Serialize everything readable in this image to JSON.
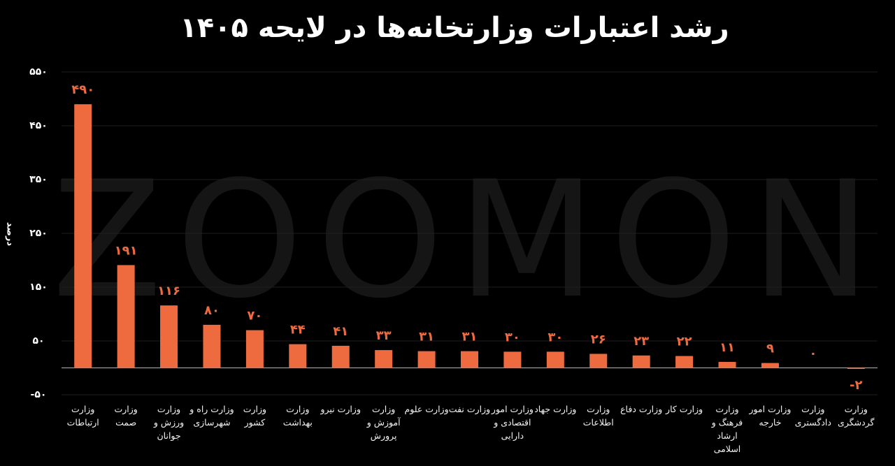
{
  "chart_data": {
    "type": "bar",
    "title": "رشد اعتبارات وزارتخانه‌ها در لایحه ۱۴۰۵",
    "y_label": "درصد",
    "watermark": "ZOOMON",
    "categories": [
      "وزارت ارتباطات",
      "وزارت صمت",
      "وزارت ورزش و جوانان",
      "وزارت راه و شهرسازی",
      "وزارت کشور",
      "وزارت بهداشت",
      "وزارت نیرو",
      "وزارت آموزش و پرورش",
      "وزارت علوم",
      "وزارت نفت",
      "وزارت امور اقتصادی و دارایی",
      "وزارت جهاد",
      "وزارت اطلاعات",
      "وزارت دفاع",
      "وزارت کار",
      "وزارت فرهنگ و ارشاد اسلامی",
      "وزارت امور خارجه",
      "وزارت دادگستری",
      "وزارت گردشگری"
    ],
    "values": [
      490,
      191,
      116,
      80,
      70,
      44,
      41,
      33,
      31,
      31,
      30,
      30,
      26,
      23,
      22,
      11,
      9,
      0,
      -2
    ],
    "value_labels": [
      "۴۹۰",
      "۱۹۱",
      "۱۱۶",
      "۸۰",
      "۷۰",
      "۴۴",
      "۴۱",
      "۳۳",
      "۳۱",
      "۳۱",
      "۳۰",
      "۳۰",
      "۲۶",
      "۲۳",
      "۲۲",
      "۱۱",
      "۹",
      "۰",
      "-۲"
    ],
    "color": "#ee6a3f",
    "ylim": [
      -50,
      550
    ],
    "yticks": [
      {
        "value": -50,
        "label": "-۵۰"
      },
      {
        "value": 50,
        "label": "۵۰"
      },
      {
        "value": 150,
        "label": "۱۵۰"
      },
      {
        "value": 250,
        "label": "۲۵۰"
      },
      {
        "value": 350,
        "label": "۳۵۰"
      },
      {
        "value": 450,
        "label": "۴۵۰"
      },
      {
        "value": 550,
        "label": "۵۵۰"
      }
    ],
    "grid": true
  }
}
